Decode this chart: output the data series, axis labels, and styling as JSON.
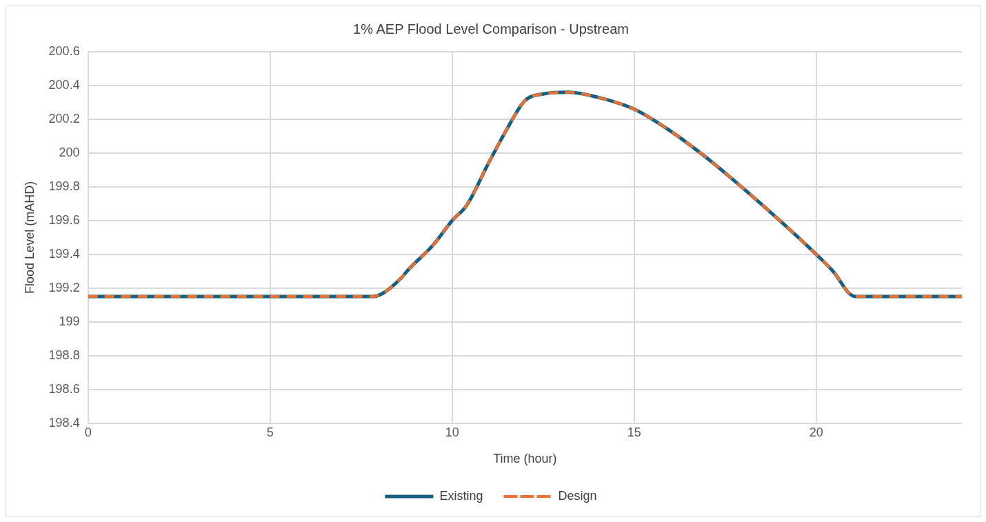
{
  "chart_data": {
    "type": "line",
    "title": "1% AEP Flood Level Comparison - Upstream",
    "xlabel": "Time (hour)",
    "ylabel": "Flood Level (mAHD)",
    "x": [
      0,
      7.8,
      8.1,
      8.6,
      8.8,
      9.5,
      10,
      10.4,
      11,
      11.5,
      12,
      12.5,
      13.2,
      14,
      15,
      16,
      17,
      18,
      19,
      20,
      20.5,
      20.9,
      21.1,
      24
    ],
    "series": [
      {
        "name": "Existing",
        "color": "#156082",
        "line_style": "solid",
        "values": [
          199.15,
          199.15,
          199.17,
          199.26,
          199.31,
          199.46,
          199.6,
          199.69,
          199.94,
          200.14,
          200.31,
          200.35,
          200.36,
          200.33,
          200.26,
          200.13,
          199.97,
          199.79,
          199.6,
          199.4,
          199.29,
          199.17,
          199.15,
          199.15
        ]
      },
      {
        "name": "Design",
        "color": "#e97132",
        "line_style": "dashed",
        "values": [
          199.15,
          199.15,
          199.17,
          199.26,
          199.31,
          199.46,
          199.6,
          199.69,
          199.94,
          200.14,
          200.31,
          200.35,
          200.36,
          200.33,
          200.26,
          200.13,
          199.97,
          199.79,
          199.6,
          199.4,
          199.29,
          199.17,
          199.15,
          199.15
        ]
      }
    ],
    "xlim": [
      0,
      24
    ],
    "xticks": [
      0,
      5,
      10,
      15,
      20
    ],
    "ylim": [
      198.4,
      200.6
    ],
    "yticks": [
      198.4,
      198.6,
      198.8,
      199,
      199.2,
      199.4,
      199.6,
      199.8,
      200,
      200.2,
      200.4,
      200.6
    ],
    "grid": true,
    "legend": "bottom",
    "marker": "none"
  }
}
